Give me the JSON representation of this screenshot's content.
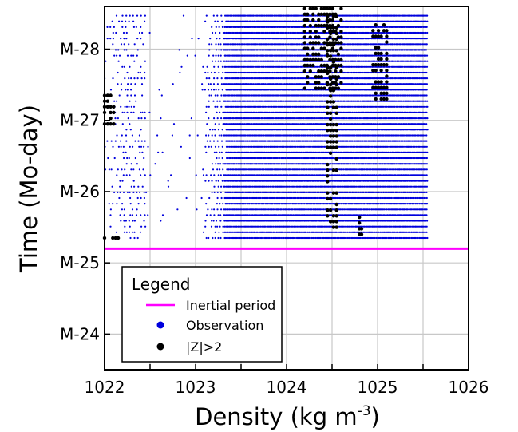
{
  "chart_data": {
    "type": "scatter",
    "xlabel": "Density (kg m",
    "xlabel_sup": "-3",
    "xlabel_end": ")",
    "ylabel": "Time (Mo-day)",
    "xlim": [
      1022,
      1026
    ],
    "ylim": [
      23.5,
      28.6
    ],
    "x_ticks": [
      {
        "value": 1022,
        "label": "1022"
      },
      {
        "value": 1023,
        "label": "1023"
      },
      {
        "value": 1024,
        "label": "1024"
      },
      {
        "value": 1025,
        "label": "1025"
      },
      {
        "value": 1026,
        "label": "1026"
      }
    ],
    "x_minor_ticks": [
      1022.5,
      1023.5,
      1024.5,
      1025.5
    ],
    "y_ticks": [
      {
        "value": 24,
        "label": "M-24"
      },
      {
        "value": 25,
        "label": "M-25"
      },
      {
        "value": 26,
        "label": "M-26"
      },
      {
        "value": 27,
        "label": "M-27"
      },
      {
        "value": 28,
        "label": "M-28"
      }
    ],
    "grid": true,
    "legend": {
      "title": "Legend",
      "position": "bottom-left",
      "entries": [
        {
          "label": "Inertial period",
          "marker": "line",
          "color": "#ff00ff"
        },
        {
          "label": "Observation",
          "marker": "dot",
          "color": "#0000dd"
        },
        {
          "label": "|Z|>2",
          "marker": "dot",
          "color": "#000000"
        }
      ]
    },
    "inertial_period": {
      "y": 25.2,
      "color": "#ff00ff"
    },
    "observation": {
      "color": "#0000dd",
      "time_range": [
        25.35,
        28.5
      ],
      "profile_interval_days": 0.08,
      "density_min": 1022.0,
      "density_max": 1025.55
    },
    "outliers": {
      "color": "#000000",
      "clusters": [
        {
          "x": [
            1024.2,
            1024.6
          ],
          "y": [
            27.45,
            28.6
          ]
        },
        {
          "x": [
            1022.0,
            1022.1
          ],
          "y": [
            26.95,
            27.4
          ]
        },
        {
          "x": [
            1022.0,
            1022.15
          ],
          "y": [
            25.35,
            25.35
          ]
        },
        {
          "x": [
            1024.95,
            1025.1
          ],
          "y": [
            27.3,
            28.4
          ]
        },
        {
          "x": [
            1024.45,
            1024.55
          ],
          "y": [
            25.5,
            28.5
          ]
        },
        {
          "x": [
            1024.8,
            1024.85
          ],
          "y": [
            25.4,
            25.7
          ]
        }
      ]
    }
  }
}
